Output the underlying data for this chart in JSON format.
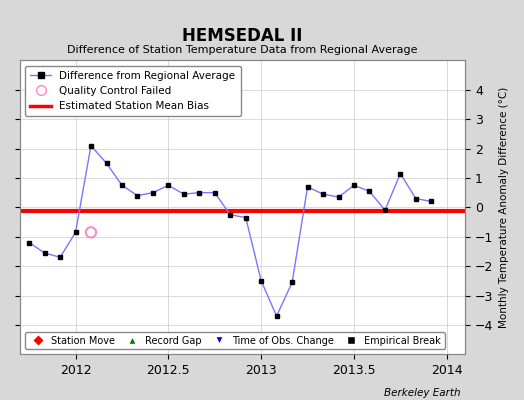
{
  "title": "HEMSEDAL II",
  "subtitle": "Difference of Station Temperature Data from Regional Average",
  "ylabel_right": "Monthly Temperature Anomaly Difference (°C)",
  "xlim": [
    2011.7,
    2014.1
  ],
  "ylim": [
    -5,
    5
  ],
  "yticks": [
    -4,
    -3,
    -2,
    -1,
    0,
    1,
    2,
    3,
    4
  ],
  "xticks": [
    2012,
    2012.5,
    2013,
    2013.5,
    2014
  ],
  "bias_line": -0.12,
  "background_color": "#d8d8d8",
  "plot_bg_color": "#ffffff",
  "line_color": "#7777ff",
  "marker_color": "#000000",
  "bias_color": "#ff0000",
  "berkeley_earth_text": "Berkeley Earth",
  "x_data": [
    2011.75,
    2011.833,
    2011.917,
    2012.0,
    2012.083,
    2012.167,
    2012.25,
    2012.333,
    2012.417,
    2012.5,
    2012.583,
    2012.667,
    2012.75,
    2012.833,
    2012.917,
    2013.0,
    2013.083,
    2013.167,
    2013.25,
    2013.333,
    2013.417,
    2013.5,
    2013.583,
    2013.667,
    2013.75,
    2013.833,
    2013.917
  ],
  "y_data": [
    -1.2,
    -1.55,
    -1.7,
    -0.85,
    2.1,
    1.5,
    0.75,
    0.4,
    0.5,
    0.75,
    0.45,
    0.5,
    0.5,
    -0.25,
    -0.35,
    -2.5,
    -3.7,
    -2.55,
    0.7,
    0.45,
    0.35,
    0.75,
    0.55,
    -0.1,
    1.15,
    0.3,
    0.2
  ],
  "qc_fail_x": [
    2012.083
  ],
  "qc_fail_y": [
    -0.85
  ],
  "qc_fail_color": "#ff88cc",
  "grid_color": "#cccccc"
}
